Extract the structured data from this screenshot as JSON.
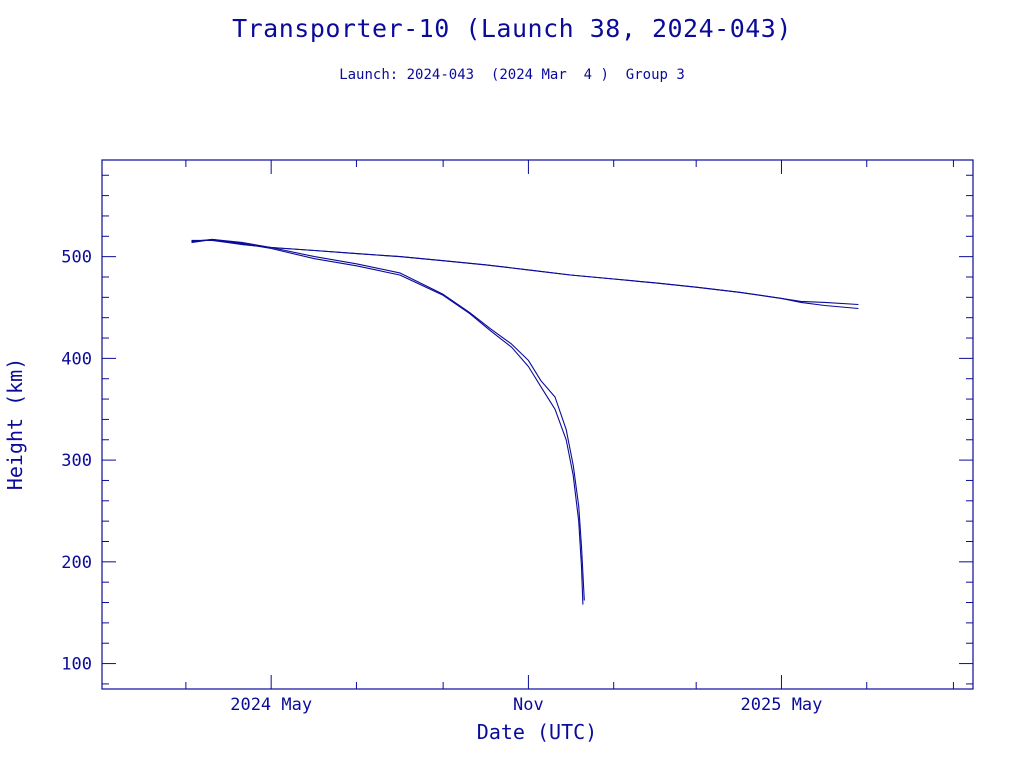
{
  "header": {
    "title": "Transporter-10 (Launch 38, 2024-043)",
    "subtitle": "Launch: 2024-043  (2024 Mar  4 )  Group 3"
  },
  "chart_data": {
    "type": "line",
    "title": "Transporter-10 (Launch 38, 2024-043)",
    "subtitle": "Launch: 2024-043  (2024 Mar  4 )  Group 3",
    "xlabel": "Date (UTC)",
    "ylabel": "Height (km)",
    "x_unit": "date",
    "xlim": [
      "2024-01-01",
      "2025-09-15"
    ],
    "ylim": [
      75,
      595
    ],
    "x_ticks": [
      {
        "date": "2024-05-01",
        "label": "2024 May"
      },
      {
        "date": "2024-11-01",
        "label": "Nov"
      },
      {
        "date": "2025-05-01",
        "label": "2025 May"
      }
    ],
    "y_ticks": [
      100,
      200,
      300,
      400,
      500
    ],
    "grid": false,
    "color": "#0b0b9a",
    "series": [
      {
        "x": [
          "2024-03-05",
          "2024-03-20",
          "2024-04-10",
          "2024-05-01",
          "2024-06-01",
          "2024-07-01",
          "2024-08-01",
          "2024-09-01",
          "2024-10-01",
          "2024-11-01",
          "2024-12-01",
          "2025-01-01",
          "2025-02-01",
          "2025-03-01",
          "2025-04-01",
          "2025-05-01",
          "2025-05-15",
          "2025-06-01",
          "2025-06-25"
        ],
        "y": [
          516,
          516,
          512,
          509,
          506,
          503,
          500,
          496,
          492,
          487,
          482,
          478,
          474,
          470,
          465,
          459,
          456,
          455,
          453
        ]
      },
      {
        "x": [
          "2024-03-05",
          "2024-03-20",
          "2024-04-10",
          "2024-05-01",
          "2024-06-01",
          "2024-07-01",
          "2024-08-01",
          "2024-09-01",
          "2024-10-01",
          "2024-11-01",
          "2024-12-01",
          "2025-01-01",
          "2025-02-01",
          "2025-03-01",
          "2025-04-01",
          "2025-05-01",
          "2025-05-15",
          "2025-06-01",
          "2025-06-25"
        ],
        "y": [
          514,
          517,
          512,
          509,
          506,
          503,
          500,
          496,
          492,
          487,
          482,
          478,
          474,
          470,
          465,
          459,
          455,
          452,
          449
        ]
      },
      {
        "x": [
          "2024-03-05",
          "2024-03-20",
          "2024-04-10",
          "2024-05-01",
          "2024-06-01",
          "2024-07-01",
          "2024-08-01",
          "2024-09-01",
          "2024-09-20",
          "2024-10-05",
          "2024-10-20",
          "2024-11-01",
          "2024-11-10",
          "2024-11-20",
          "2024-11-28",
          "2024-12-03",
          "2024-12-07",
          "2024-12-09",
          "2024-12-10"
        ],
        "y": [
          514,
          517,
          513,
          508,
          498,
          491,
          482,
          462,
          444,
          427,
          411,
          392,
          372,
          350,
          320,
          285,
          240,
          195,
          158
        ]
      },
      {
        "x": [
          "2024-03-05",
          "2024-03-20",
          "2024-04-10",
          "2024-05-01",
          "2024-06-01",
          "2024-07-01",
          "2024-08-01",
          "2024-09-01",
          "2024-09-20",
          "2024-10-05",
          "2024-10-20",
          "2024-11-01",
          "2024-11-10",
          "2024-11-20",
          "2024-11-28",
          "2024-12-03",
          "2024-12-07",
          "2024-12-09",
          "2024-12-11"
        ],
        "y": [
          515,
          517,
          514,
          509,
          500,
          493,
          484,
          463,
          445,
          429,
          414,
          398,
          378,
          362,
          330,
          295,
          255,
          215,
          162
        ]
      }
    ]
  }
}
